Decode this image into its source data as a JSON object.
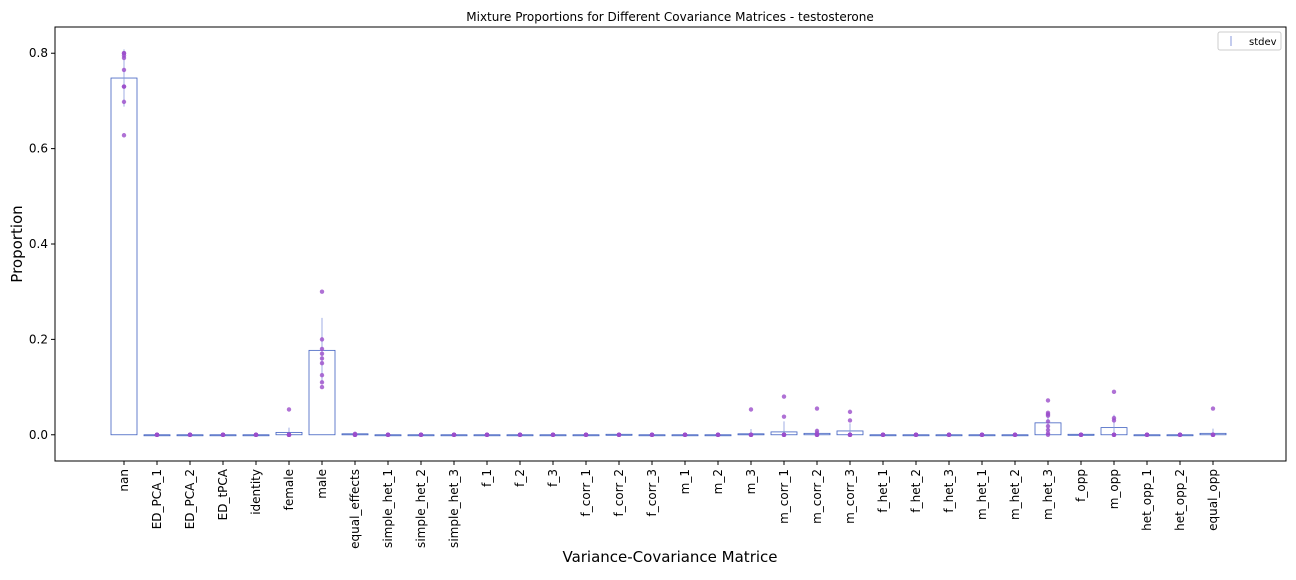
{
  "chart_data": {
    "type": "bar",
    "title": "Mixture Proportions for Different Covariance Matrices - testosterone",
    "xlabel": "Variance-Covariance Matrice",
    "ylabel": "Proportion",
    "ylim": [
      -0.055,
      0.855
    ],
    "yticks": [
      0.0,
      0.2,
      0.4,
      0.6,
      0.8
    ],
    "ytick_labels": [
      "0.0",
      "0.2",
      "0.4",
      "0.6",
      "0.8"
    ],
    "grid": false,
    "legend": {
      "placement": "top-right",
      "entries": [
        "stdev"
      ]
    },
    "colors": {
      "bar_edge": "#4060c0",
      "errorbar": "#8899dd",
      "points": "#9b4dca"
    },
    "categories": [
      "nan",
      "ED_PCA_1",
      "ED_PCA_2",
      "ED_tPCA",
      "identity",
      "female",
      "male",
      "equal_effects",
      "simple_het_1",
      "simple_het_2",
      "simple_het_3",
      "f_1",
      "f_2",
      "f_3",
      "f_corr_1",
      "f_corr_2",
      "f_corr_3",
      "m_1",
      "m_2",
      "m_3",
      "m_corr_1",
      "m_corr_2",
      "m_corr_3",
      "f_het_1",
      "f_het_2",
      "f_het_3",
      "m_het_1",
      "m_het_2",
      "m_het_3",
      "f_opp",
      "m_opp",
      "het_opp_1",
      "het_opp_2",
      "equal_opp"
    ],
    "values": [
      0.748,
      0.0,
      0.0,
      0.0,
      0.0,
      0.005,
      0.177,
      0.002,
      0.0,
      0.0,
      0.0,
      0.0,
      0.0,
      0.0,
      0.0,
      0.001,
      0.0,
      0.0,
      0.0,
      0.002,
      0.006,
      0.003,
      0.008,
      0.0,
      0.0,
      0.0,
      0.0,
      0.0,
      0.025,
      0.001,
      0.015,
      0.0,
      0.0,
      0.003
    ],
    "stdev": [
      0.06,
      0.0,
      0.0,
      0.0,
      0.0,
      0.01,
      0.068,
      0.001,
      0.0,
      0.0,
      0.0,
      0.0,
      0.0,
      0.0,
      0.0,
      0.001,
      0.0,
      0.0,
      0.0,
      0.01,
      0.022,
      0.01,
      0.016,
      0.0,
      0.0,
      0.0,
      0.0,
      0.0,
      0.02,
      0.001,
      0.027,
      0.0,
      0.0,
      0.01
    ],
    "points": [
      [
        0.8,
        0.79,
        0.795,
        0.8,
        0.765,
        0.73,
        0.73,
        0.698,
        0.628
      ],
      [
        0,
        0,
        0,
        0,
        0,
        0,
        0,
        0,
        0
      ],
      [
        0,
        0,
        0,
        0,
        0,
        0,
        0,
        0,
        0
      ],
      [
        0,
        0,
        0,
        0,
        0,
        0,
        0,
        0,
        0
      ],
      [
        0,
        0,
        0,
        0,
        0,
        0,
        0,
        0,
        0
      ],
      [
        0.053,
        0,
        0,
        0,
        0,
        0,
        0,
        0,
        0
      ],
      [
        0.3,
        0.2,
        0.18,
        0.17,
        0.16,
        0.15,
        0.125,
        0.11,
        0.1
      ],
      [
        0,
        0,
        0.002,
        0,
        0,
        0.001,
        0,
        0,
        0
      ],
      [
        0,
        0,
        0,
        0,
        0,
        0,
        0,
        0,
        0
      ],
      [
        0,
        0,
        0,
        0,
        0,
        0,
        0,
        0,
        0
      ],
      [
        0,
        0,
        0,
        0,
        0,
        0,
        0,
        0,
        0
      ],
      [
        0,
        0,
        0,
        0,
        0,
        0,
        0,
        0,
        0
      ],
      [
        0,
        0,
        0,
        0,
        0,
        0,
        0,
        0,
        0
      ],
      [
        0,
        0,
        0,
        0,
        0,
        0,
        0,
        0,
        0
      ],
      [
        0,
        0,
        0,
        0,
        0,
        0,
        0,
        0,
        0
      ],
      [
        0,
        0,
        0,
        0,
        0,
        0,
        0,
        0,
        0
      ],
      [
        0,
        0,
        0,
        0,
        0,
        0,
        0,
        0,
        0
      ],
      [
        0,
        0,
        0,
        0,
        0,
        0,
        0,
        0,
        0
      ],
      [
        0,
        0,
        0,
        0,
        0,
        0,
        0,
        0,
        0
      ],
      [
        0.053,
        0,
        0,
        0,
        0,
        0,
        0,
        0,
        0
      ],
      [
        0.08,
        0.038,
        0,
        0,
        0,
        0,
        0,
        0,
        0
      ],
      [
        0.055,
        0.008,
        0.003,
        0,
        0,
        0,
        0,
        0,
        0
      ],
      [
        0.048,
        0.03,
        0,
        0,
        0,
        0,
        0,
        0,
        0
      ],
      [
        0,
        0,
        0,
        0,
        0,
        0,
        0,
        0,
        0
      ],
      [
        0,
        0,
        0,
        0,
        0,
        0,
        0,
        0,
        0
      ],
      [
        0,
        0,
        0,
        0,
        0,
        0,
        0,
        0,
        0
      ],
      [
        0,
        0,
        0,
        0,
        0,
        0,
        0,
        0,
        0
      ],
      [
        0,
        0,
        0,
        0,
        0,
        0,
        0,
        0,
        0
      ],
      [
        0.072,
        0.046,
        0.043,
        0.04,
        0.028,
        0.018,
        0.01,
        0.003,
        0
      ],
      [
        0,
        0,
        0,
        0,
        0,
        0,
        0,
        0,
        0
      ],
      [
        0.09,
        0.035,
        0.03,
        0,
        0,
        0,
        0,
        0,
        0
      ],
      [
        0,
        0,
        0,
        0,
        0,
        0,
        0,
        0,
        0
      ],
      [
        0,
        0,
        0,
        0,
        0,
        0,
        0,
        0,
        0
      ],
      [
        0.055,
        0,
        0,
        0,
        0,
        0,
        0,
        0,
        0
      ]
    ]
  }
}
